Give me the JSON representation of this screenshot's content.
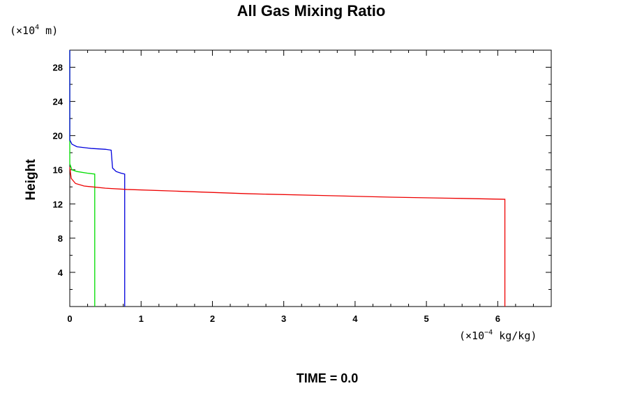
{
  "chart_data": {
    "type": "line",
    "title": "All Gas Mixing Ratio",
    "ylabel": "Height",
    "y_unit": {
      "prefix": "(×10",
      "exp": "4",
      "suffix": " m)"
    },
    "x_unit": {
      "prefix": "(×10",
      "exp": "−4",
      "suffix": " kg/kg)"
    },
    "footer": "TIME = 0.0",
    "xlim": [
      0,
      6.75
    ],
    "ylim": [
      0,
      30
    ],
    "x_ticks": [
      {
        "value": 0,
        "label": "0"
      },
      {
        "value": 1,
        "label": "1"
      },
      {
        "value": 2,
        "label": "2"
      },
      {
        "value": 3,
        "label": "3"
      },
      {
        "value": 4,
        "label": "4"
      },
      {
        "value": 5,
        "label": "5"
      },
      {
        "value": 6,
        "label": "6"
      }
    ],
    "y_ticks": [
      {
        "value": 4,
        "label": "4"
      },
      {
        "value": 8,
        "label": "8"
      },
      {
        "value": 12,
        "label": "12"
      },
      {
        "value": 16,
        "label": "16"
      },
      {
        "value": 20,
        "label": "20"
      },
      {
        "value": 24,
        "label": "24"
      },
      {
        "value": 28,
        "label": "28"
      }
    ],
    "series": [
      {
        "color": "#00dd00",
        "points": [
          [
            0,
            30
          ],
          [
            0,
            16.7
          ],
          [
            0.03,
            16.0
          ],
          [
            0.1,
            15.8
          ],
          [
            0.25,
            15.6
          ],
          [
            0.35,
            15.5
          ],
          [
            0.35,
            0
          ]
        ]
      },
      {
        "color": "#0000dd",
        "points": [
          [
            0,
            30
          ],
          [
            0,
            19.5
          ],
          [
            0.03,
            19.0
          ],
          [
            0.1,
            18.7
          ],
          [
            0.3,
            18.5
          ],
          [
            0.5,
            18.4
          ],
          [
            0.58,
            18.3
          ],
          [
            0.6,
            16.2
          ],
          [
            0.65,
            15.8
          ],
          [
            0.72,
            15.6
          ],
          [
            0.77,
            15.5
          ],
          [
            0.77,
            0
          ]
        ]
      },
      {
        "color": "#ee0000",
        "points": [
          [
            0,
            16.3
          ],
          [
            0.02,
            15.0
          ],
          [
            0.08,
            14.4
          ],
          [
            0.2,
            14.1
          ],
          [
            0.5,
            13.85
          ],
          [
            0.8,
            13.7
          ],
          [
            1.5,
            13.5
          ],
          [
            2.5,
            13.2
          ],
          [
            3.5,
            13.0
          ],
          [
            4.5,
            12.8
          ],
          [
            5.5,
            12.65
          ],
          [
            6.1,
            12.55
          ],
          [
            6.1,
            0
          ]
        ]
      }
    ]
  }
}
